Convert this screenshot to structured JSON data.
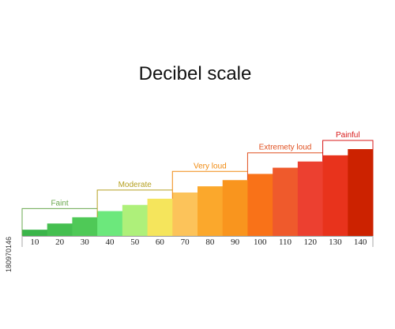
{
  "chart_data": {
    "type": "bar",
    "title": "Decibel scale",
    "xlabel": "",
    "ylabel": "",
    "categories": [
      "10",
      "20",
      "30",
      "40",
      "50",
      "60",
      "70",
      "80",
      "90",
      "100",
      "110",
      "120",
      "130",
      "140"
    ],
    "values": [
      10,
      20,
      30,
      40,
      50,
      60,
      70,
      80,
      90,
      100,
      110,
      120,
      130,
      140
    ],
    "colors": [
      "#3bb54a",
      "#45bf50",
      "#4fc957",
      "#6ce87c",
      "#aef07a",
      "#f5e55c",
      "#fcc35a",
      "#fba82c",
      "#f9951e",
      "#f97218",
      "#ef5a2c",
      "#ec4030",
      "#e8331c",
      "#cc2200"
    ],
    "ylim": [
      0,
      140
    ],
    "grid": false,
    "groups": [
      {
        "label": "Faint",
        "from": 0,
        "to": 2,
        "color": "#6aa84f"
      },
      {
        "label": "Moderate",
        "from": 3,
        "to": 5,
        "color": "#b5a020"
      },
      {
        "label": "Very loud",
        "from": 6,
        "to": 8,
        "color": "#f08a10"
      },
      {
        "label": "Extremety loud",
        "from": 9,
        "to": 11,
        "color": "#e05020"
      },
      {
        "label": "Painful",
        "from": 12,
        "to": 13,
        "color": "#d81818"
      }
    ]
  },
  "watermark_id": "180970146"
}
